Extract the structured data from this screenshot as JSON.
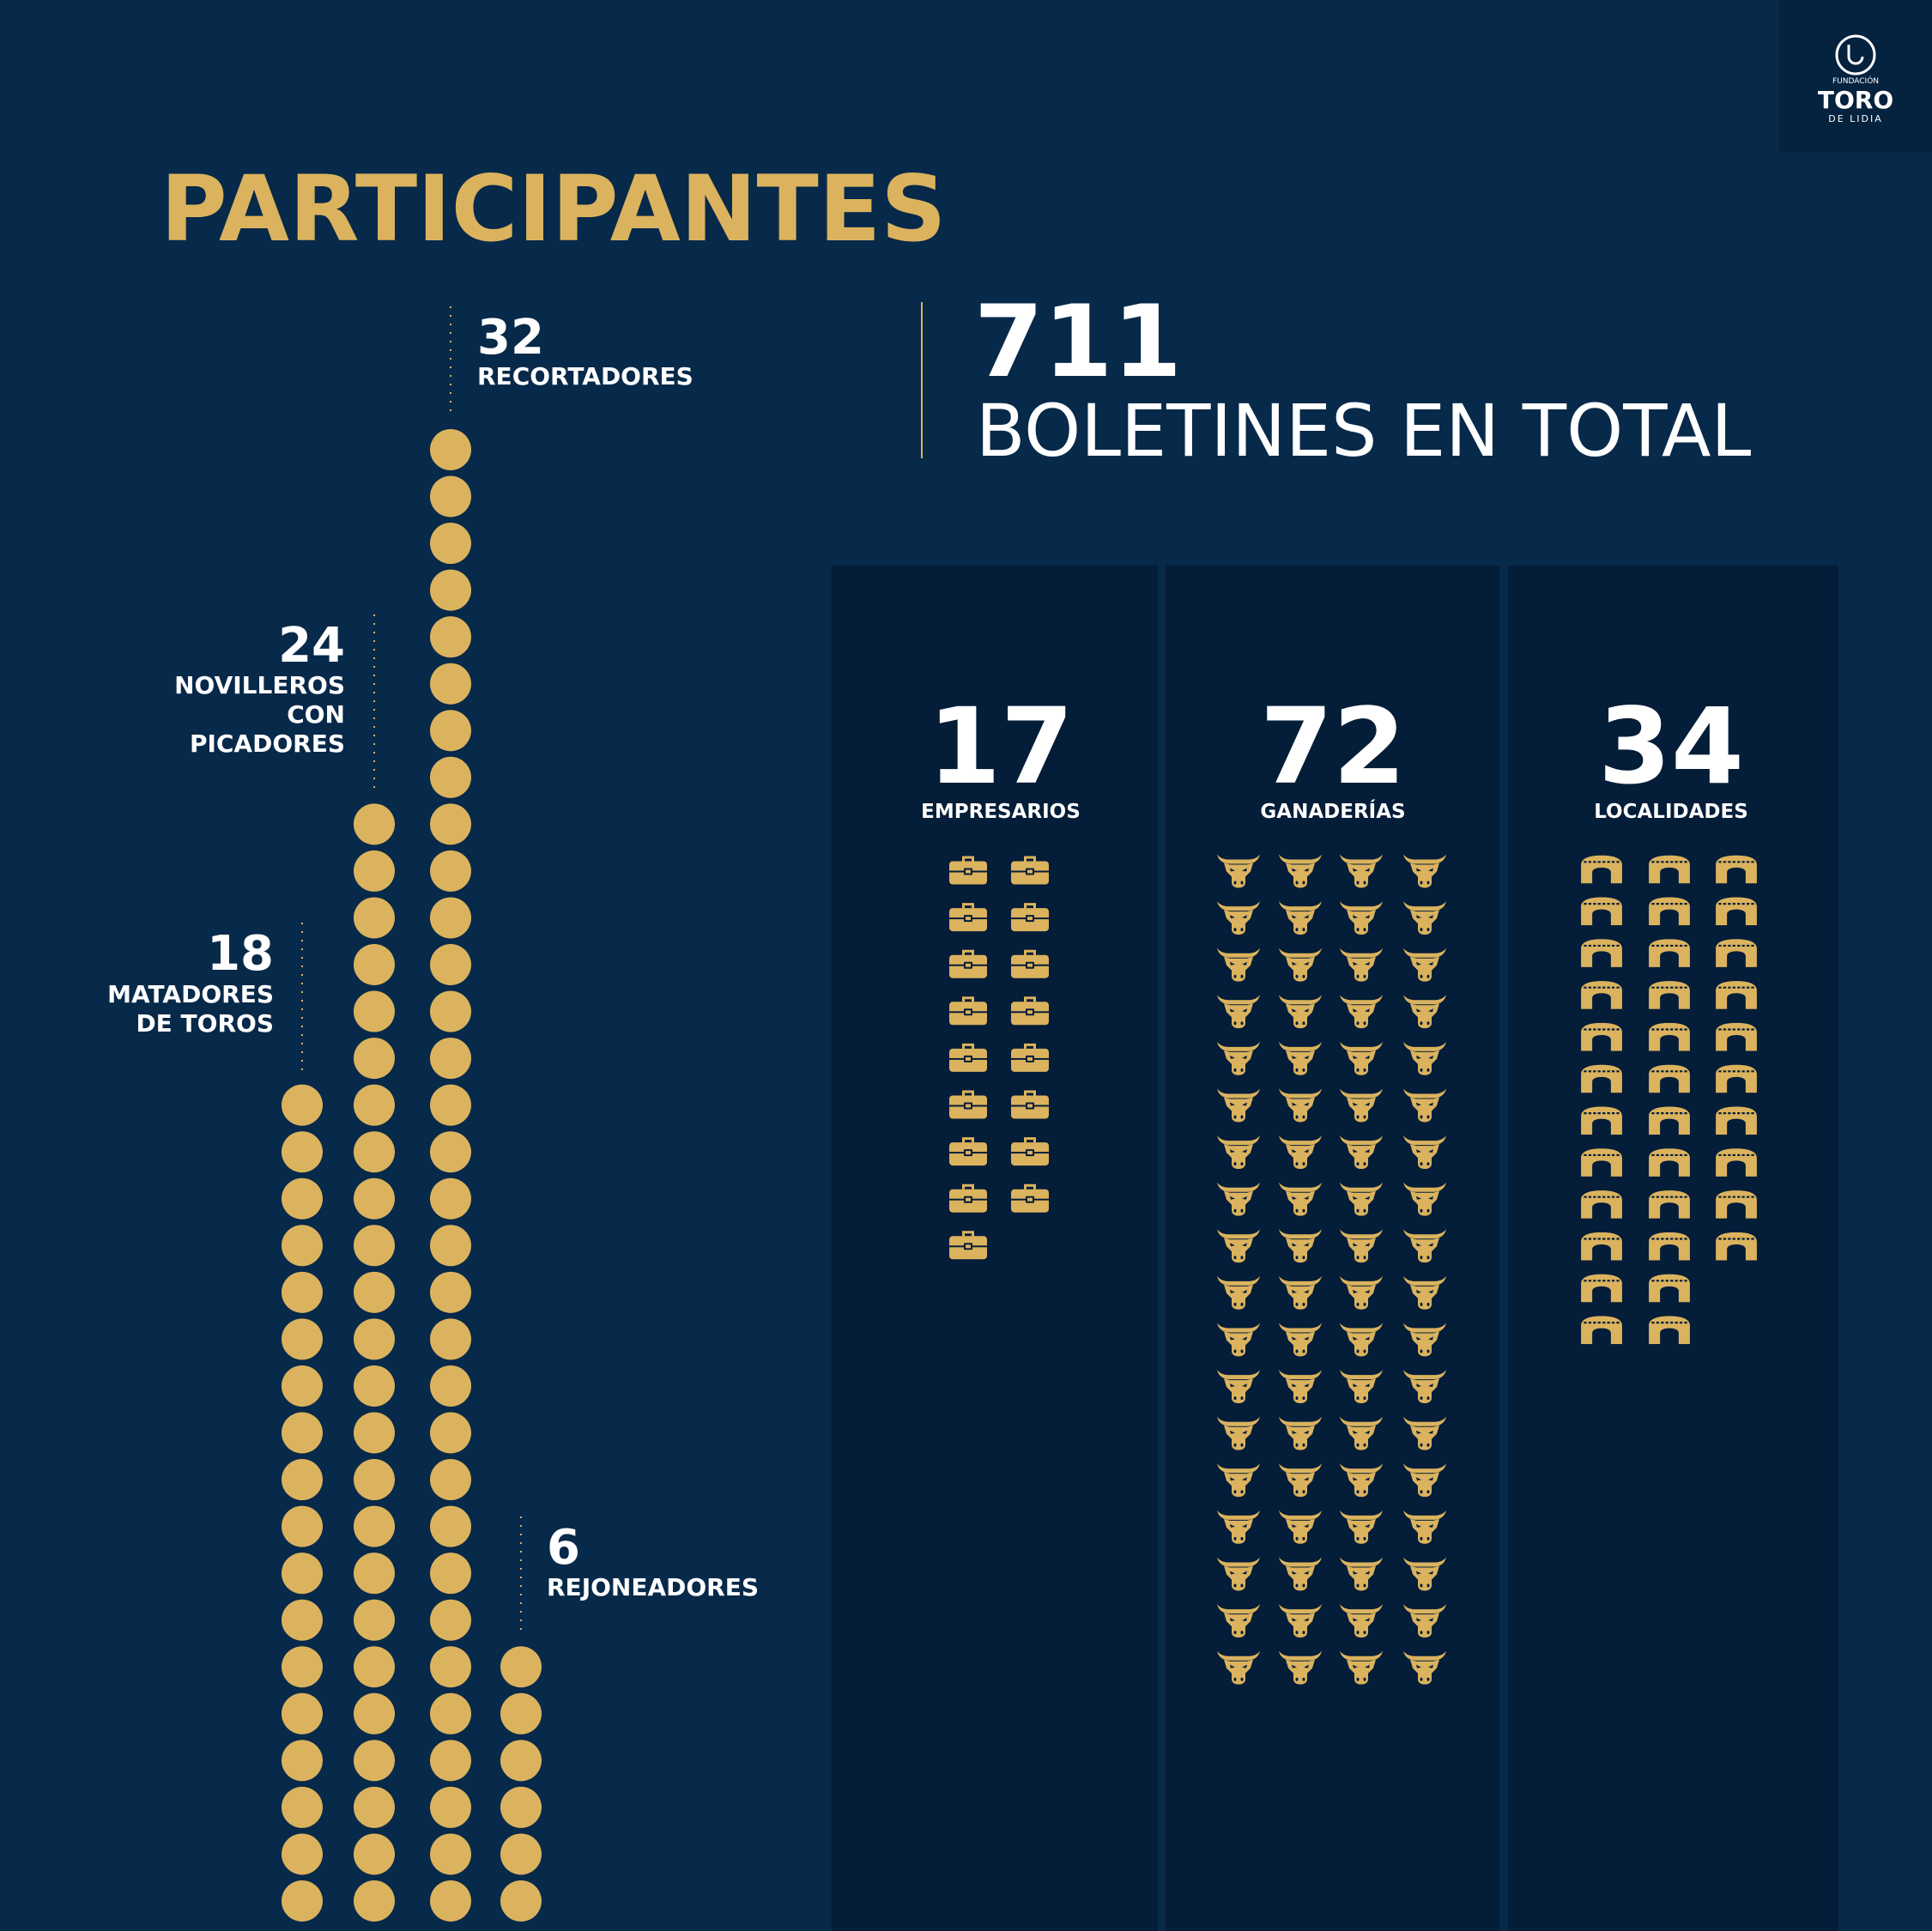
{
  "logo": {
    "line1": "FUNDACIÓN",
    "line2": "TORO",
    "line3": "DE LIDIA"
  },
  "title": "PARTICIPANTES",
  "total": {
    "value": 711,
    "label": "BOLETINES EN TOTAL"
  },
  "participants": [
    {
      "value": 18,
      "label": [
        "MATADORES",
        "DE TOROS"
      ]
    },
    {
      "value": 24,
      "label": [
        "NOVILLEROS",
        "CON",
        "PICADORES"
      ]
    },
    {
      "value": 32,
      "label": [
        "RECORTADORES"
      ]
    },
    {
      "value": 6,
      "label": [
        "REJONEADORES"
      ]
    }
  ],
  "entities": [
    {
      "value": 17,
      "label": "EMPRESARIOS"
    },
    {
      "value": 72,
      "label": "GANADERÍAS"
    },
    {
      "value": 34,
      "label": "LOCALIDADES"
    }
  ]
}
